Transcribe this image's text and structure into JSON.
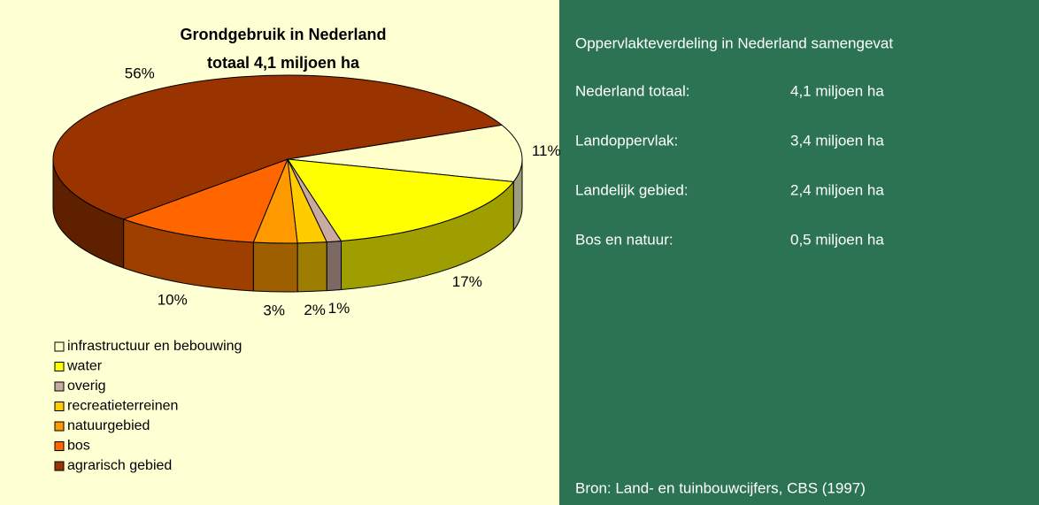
{
  "chart_data": {
    "type": "pie3d",
    "title": "Grondgebruik in Nederland",
    "subtitle": "totaal 4,1 miljoen ha",
    "categories": [
      "infrastructuur en bebouwing",
      "water",
      "overig",
      "recreatieterreinen",
      "natuurgebied",
      "bos",
      "agrarisch gebied"
    ],
    "values": [
      11,
      17,
      1,
      2,
      3,
      10,
      56
    ],
    "value_labels": [
      "11%",
      "17%",
      "1%",
      "2%",
      "3%",
      "10%",
      "56%"
    ],
    "colors": [
      "#ffffcc",
      "#ffff00",
      "#c8aaa0",
      "#ffcc00",
      "#ff9900",
      "#ff6600",
      "#993300"
    ],
    "legend": "bottom-left"
  },
  "panel": {
    "title": "Oppervlakteverdeling in Nederland samengevat",
    "rows": [
      [
        "Nederland totaal:",
        "4,1 miljoen ha"
      ],
      [
        "Landoppervlak:",
        "3,4 miljoen ha"
      ],
      [
        "Landelijk gebied:",
        "2,4 miljoen ha"
      ],
      [
        "Bos en natuur:",
        "0,5 miljoen ha"
      ]
    ],
    "source": "Bron: Land- en tuinbouwcijfers, CBS (1997)"
  }
}
